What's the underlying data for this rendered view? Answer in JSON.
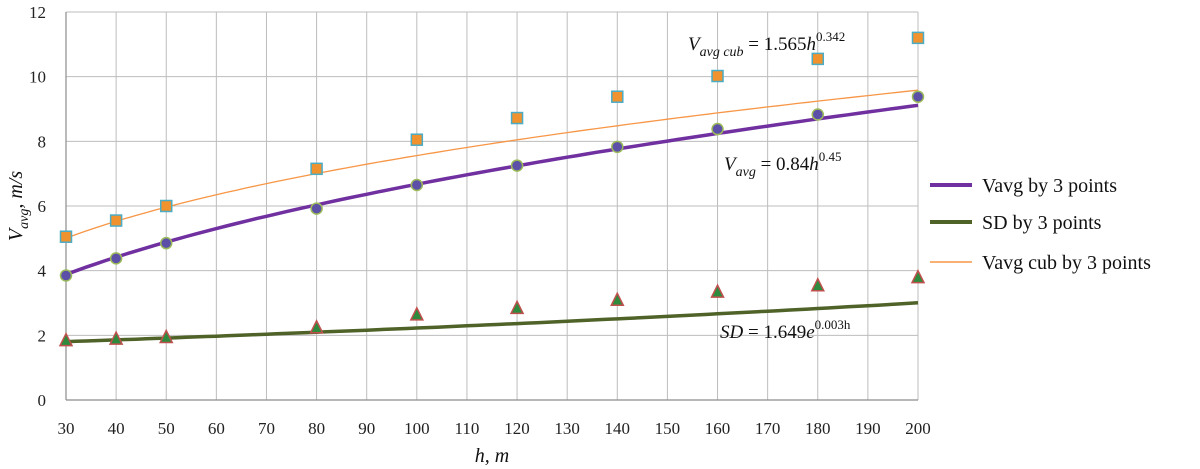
{
  "chart_data": {
    "type": "scatter",
    "xlabel": "h, m",
    "ylabel_main": "V",
    "ylabel_sub": "avg",
    "ylabel_rest": ", m/s",
    "xlim": [
      30,
      200
    ],
    "ylim": [
      0,
      12
    ],
    "xticks": [
      30,
      40,
      50,
      60,
      70,
      80,
      90,
      100,
      110,
      120,
      130,
      140,
      150,
      160,
      170,
      180,
      190,
      200
    ],
    "yticks": [
      0,
      2,
      4,
      6,
      8,
      10,
      12
    ],
    "grid": true,
    "legend_position": "right",
    "series": [
      {
        "key": "vavg_cub",
        "marker": "square",
        "color": "#F0922E",
        "edge_color": "#4BACC6",
        "x": [
          30,
          40,
          50,
          80,
          100,
          120,
          140,
          160,
          180,
          200
        ],
        "y": [
          5.05,
          5.55,
          6.0,
          7.15,
          8.05,
          8.72,
          9.38,
          10.02,
          10.55,
          11.2
        ]
      },
      {
        "key": "vavg",
        "marker": "circle",
        "color": "#5B4FA8",
        "edge_color": "#9BBB59",
        "x": [
          30,
          40,
          50,
          80,
          100,
          120,
          140,
          160,
          180,
          200
        ],
        "y": [
          3.85,
          4.38,
          4.85,
          5.92,
          6.65,
          7.25,
          7.83,
          8.38,
          8.83,
          9.38
        ]
      },
      {
        "key": "sd",
        "marker": "triangle",
        "color": "#2E8B3E",
        "edge_color": "#C0504D",
        "x": [
          30,
          40,
          50,
          80,
          100,
          120,
          140,
          160,
          180,
          200
        ],
        "y": [
          1.85,
          1.9,
          1.95,
          2.25,
          2.65,
          2.85,
          3.1,
          3.35,
          3.55,
          3.8
        ]
      }
    ],
    "trendlines": [
      {
        "key": "vavg_fit",
        "type": "power",
        "a": 0.84,
        "b": 0.45,
        "color": "#7030A0",
        "legend": "Vavg by 3 points"
      },
      {
        "key": "sd_fit",
        "type": "exponential",
        "a": 1.649,
        "b": 0.003,
        "color": "#4F6228",
        "legend": "SD by 3 points"
      },
      {
        "key": "vavg_cub_fit",
        "type": "power",
        "a": 1.565,
        "b": 0.342,
        "color": "#F79646",
        "legend": "Vavg cub by 3 points"
      }
    ],
    "annotations": {
      "cub_eq": {
        "lhs": "V",
        "sub": "avg cub",
        "mid": " = 1.565",
        "var": "h",
        "sup": "0.342"
      },
      "avg_eq": {
        "lhs": "V",
        "sub": "avg",
        "mid": " = 0.84",
        "var": "h",
        "sup": "0.45"
      },
      "sd_eq": {
        "lhs": "SD",
        "mid": " = 1.649",
        "var": "e",
        "sup": "0.003h"
      }
    }
  },
  "legend": {
    "items": [
      {
        "label": "Vavg by 3 points",
        "color": "#7030A0"
      },
      {
        "label": "SD by 3 points",
        "color": "#4F6228"
      },
      {
        "label": "Vavg cub by 3 points",
        "color": "#F79646"
      }
    ]
  }
}
